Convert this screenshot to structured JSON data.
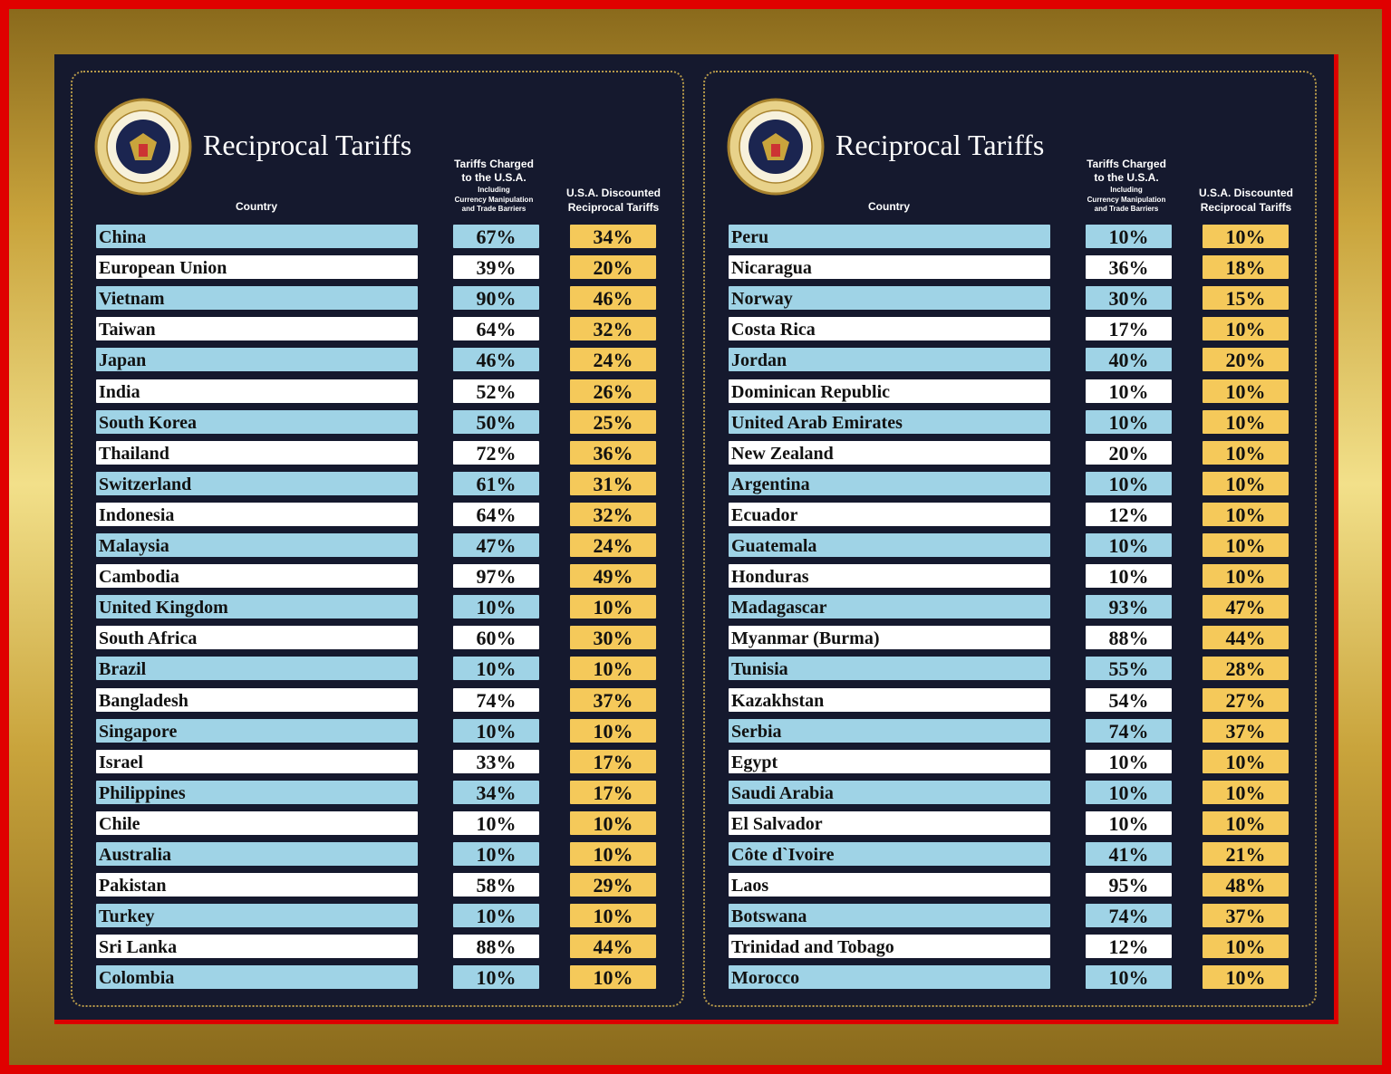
{
  "panels": [
    {
      "title": "Reciprocal Tariffs",
      "headers": {
        "country": "Country",
        "charged": [
          "Tariffs Charged",
          "to the U.S.A.",
          "Including",
          "Currency Manipulation",
          "and Trade Barriers"
        ],
        "discounted": [
          "U.S.A. Discounted",
          "Reciprocal Tariffs"
        ]
      },
      "rows": [
        [
          "China",
          "67%",
          "34%"
        ],
        [
          "European Union",
          "39%",
          "20%"
        ],
        [
          "Vietnam",
          "90%",
          "46%"
        ],
        [
          "Taiwan",
          "64%",
          "32%"
        ],
        [
          "Japan",
          "46%",
          "24%"
        ],
        [
          "India",
          "52%",
          "26%"
        ],
        [
          "South Korea",
          "50%",
          "25%"
        ],
        [
          "Thailand",
          "72%",
          "36%"
        ],
        [
          "Switzerland",
          "61%",
          "31%"
        ],
        [
          "Indonesia",
          "64%",
          "32%"
        ],
        [
          "Malaysia",
          "47%",
          "24%"
        ],
        [
          "Cambodia",
          "97%",
          "49%"
        ],
        [
          "United Kingdom",
          "10%",
          "10%"
        ],
        [
          "South Africa",
          "60%",
          "30%"
        ],
        [
          "Brazil",
          "10%",
          "10%"
        ],
        [
          "Bangladesh",
          "74%",
          "37%"
        ],
        [
          "Singapore",
          "10%",
          "10%"
        ],
        [
          "Israel",
          "33%",
          "17%"
        ],
        [
          "Philippines",
          "34%",
          "17%"
        ],
        [
          "Chile",
          "10%",
          "10%"
        ],
        [
          "Australia",
          "10%",
          "10%"
        ],
        [
          "Pakistan",
          "58%",
          "29%"
        ],
        [
          "Turkey",
          "10%",
          "10%"
        ],
        [
          "Sri Lanka",
          "88%",
          "44%"
        ],
        [
          "Colombia",
          "10%",
          "10%"
        ]
      ]
    },
    {
      "title": "Reciprocal Tariffs",
      "headers": {
        "country": "Country",
        "charged": [
          "Tariffs Charged",
          "to the U.S.A.",
          "Including",
          "Currency Manipulation",
          "and Trade Barriers"
        ],
        "discounted": [
          "U.S.A. Discounted",
          "Reciprocal Tariffs"
        ]
      },
      "rows": [
        [
          "Peru",
          "10%",
          "10%"
        ],
        [
          "Nicaragua",
          "36%",
          "18%"
        ],
        [
          "Norway",
          "30%",
          "15%"
        ],
        [
          "Costa Rica",
          "17%",
          "10%"
        ],
        [
          "Jordan",
          "40%",
          "20%"
        ],
        [
          "Dominican Republic",
          "10%",
          "10%"
        ],
        [
          "United Arab Emirates",
          "10%",
          "10%"
        ],
        [
          "New Zealand",
          "20%",
          "10%"
        ],
        [
          "Argentina",
          "10%",
          "10%"
        ],
        [
          "Ecuador",
          "12%",
          "10%"
        ],
        [
          "Guatemala",
          "10%",
          "10%"
        ],
        [
          "Honduras",
          "10%",
          "10%"
        ],
        [
          "Madagascar",
          "93%",
          "47%"
        ],
        [
          "Myanmar (Burma)",
          "88%",
          "44%"
        ],
        [
          "Tunisia",
          "55%",
          "28%"
        ],
        [
          "Kazakhstan",
          "54%",
          "27%"
        ],
        [
          "Serbia",
          "74%",
          "37%"
        ],
        [
          "Egypt",
          "10%",
          "10%"
        ],
        [
          "Saudi Arabia",
          "10%",
          "10%"
        ],
        [
          "El Salvador",
          "10%",
          "10%"
        ],
        [
          "Côte d`Ivoire",
          "41%",
          "21%"
        ],
        [
          "Laos",
          "95%",
          "48%"
        ],
        [
          "Botswana",
          "74%",
          "37%"
        ],
        [
          "Trinidad and Tobago",
          "12%",
          "10%"
        ],
        [
          "Morocco",
          "10%",
          "10%"
        ]
      ]
    }
  ]
}
